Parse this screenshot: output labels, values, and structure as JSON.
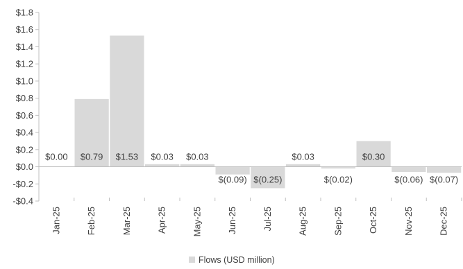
{
  "chart_data": {
    "type": "bar",
    "categories": [
      "Jan-25",
      "Feb-25",
      "Mar-25",
      "Apr-25",
      "May-25",
      "Jun-25",
      "Jul-25",
      "Aug-25",
      "Sep-25",
      "Oct-25",
      "Nov-25",
      "Dec-25"
    ],
    "series": [
      {
        "name": "Flows (USD million)",
        "values": [
          0.0,
          0.79,
          1.53,
          0.03,
          0.03,
          -0.09,
          -0.25,
          0.03,
          -0.02,
          0.3,
          -0.06,
          -0.07
        ],
        "labels": [
          "$0.00",
          "$0.79",
          "$1.53",
          "$0.03",
          "$0.03",
          "$(0.09)",
          "$(0.25)",
          "$0.03",
          "$(0.02)",
          "$0.30",
          "$(0.06)",
          "$(0.07)"
        ],
        "color": "#d9d9d9"
      }
    ],
    "yticks": [
      -0.4,
      -0.2,
      0.0,
      0.2,
      0.4,
      0.6,
      0.8,
      1.0,
      1.2,
      1.4,
      1.6,
      1.8
    ],
    "ytick_labels": [
      "-$0.4",
      "-$0.2",
      "$0.0",
      "$0.2",
      "$0.4",
      "$0.6",
      "$0.8",
      "$1.0",
      "$1.2",
      "$1.4",
      "$1.6",
      "$1.8"
    ],
    "ylim": [
      -0.4,
      1.8
    ],
    "title": "",
    "xlabel": "",
    "ylabel": "",
    "grid": false,
    "legend_position": "bottom-center",
    "axis_color": "#bfbfbf",
    "text_color": "#404040"
  }
}
